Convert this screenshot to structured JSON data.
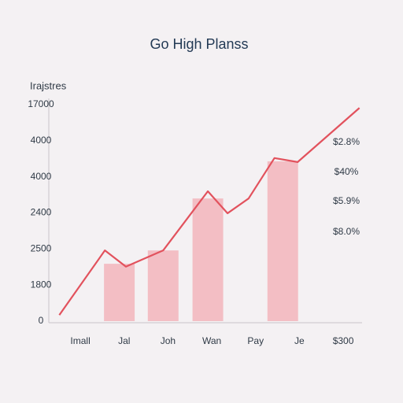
{
  "chart_data": {
    "type": "combo",
    "title": "Go High Planss",
    "y_axis_title": "Irajstres",
    "xlim": [
      -0.72,
      6.43
    ],
    "xticks": [
      {
        "value": 0,
        "label": "Imall"
      },
      {
        "value": 1,
        "label": "Jal"
      },
      {
        "value": 2,
        "label": "Joh"
      },
      {
        "value": 3,
        "label": "Wan"
      },
      {
        "value": 4,
        "label": "Pay"
      },
      {
        "value": 5,
        "label": "Je"
      },
      {
        "value": 6,
        "label": "$300"
      }
    ],
    "ylim": [
      0,
      6
    ],
    "yticks": [
      0,
      {
        "value": 1,
        "label": "1800"
      },
      {
        "value": 2,
        "label": "2500"
      },
      {
        "value": 3,
        "label": "2400"
      },
      {
        "value": 4,
        "label": "4000"
      },
      {
        "value": 5,
        "label": "4000"
      },
      {
        "value": 6,
        "label": "17000"
      }
    ],
    "grid": false,
    "series": [
      {
        "type": "bar",
        "color": "#f2b5bb",
        "x": [
          0.89,
          1.89,
          2.91,
          4.62
        ],
        "values": [
          1.59,
          1.96,
          3.4,
          4.43
        ]
      },
      {
        "type": "line",
        "color": "#e2525d",
        "x": [
          -0.48,
          0.56,
          1.04,
          1.89,
          2.91,
          3.36,
          3.84,
          4.43,
          4.96,
          6.37
        ],
        "values": [
          0.17,
          1.96,
          1.51,
          1.96,
          3.6,
          2.99,
          3.4,
          4.52,
          4.41,
          5.91
        ]
      }
    ],
    "annotations": [
      "$2.8%",
      "$40%",
      "$5.9%",
      "$8.0%"
    ]
  }
}
